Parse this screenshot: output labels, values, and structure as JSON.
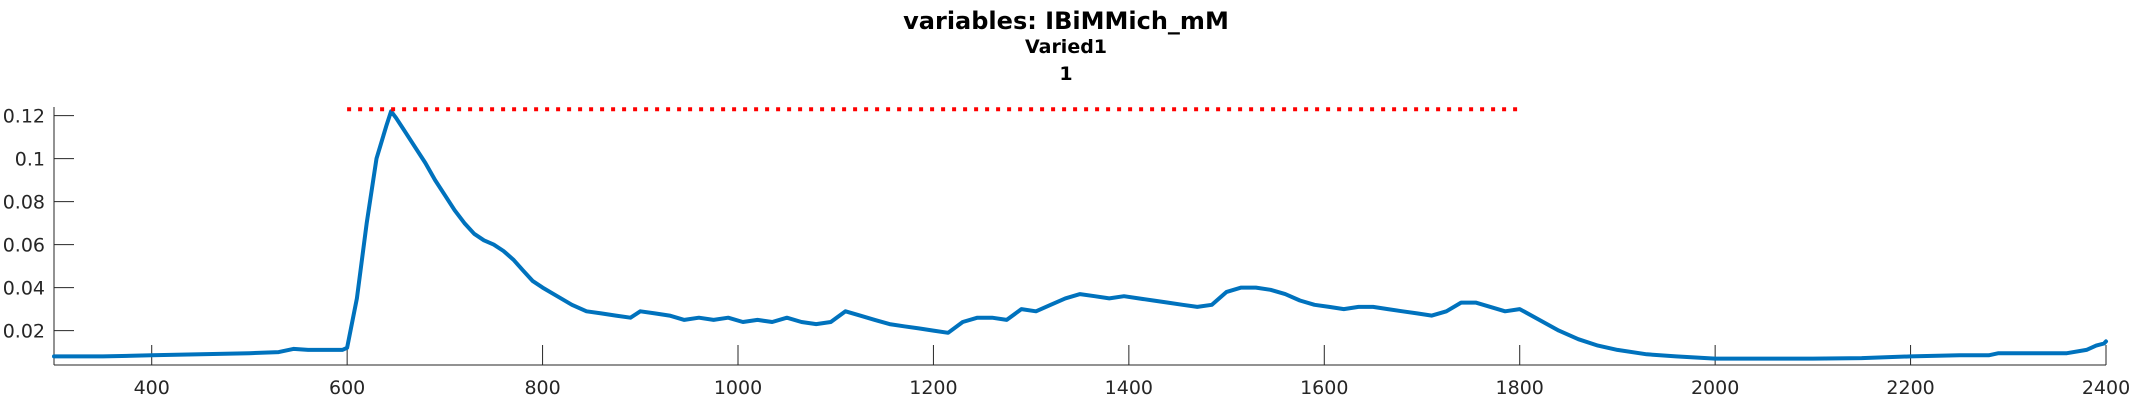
{
  "chart_data": {
    "type": "line",
    "title": "variables: IBiMMich_mM",
    "subtitle": "Varied1",
    "subtitle2": "1",
    "xlabel": "",
    "ylabel": "",
    "xlim": [
      300,
      2400
    ],
    "ylim": [
      0.004,
      0.124
    ],
    "grid": false,
    "legend": "none",
    "xticks": [
      400,
      600,
      800,
      1000,
      1200,
      1400,
      1600,
      1800,
      2000,
      2200,
      2400
    ],
    "xtick_labels": [
      "400",
      "600",
      "800",
      "1000",
      "1200",
      "1400",
      "1600",
      "1800",
      "2000",
      "2200",
      "2400"
    ],
    "yticks": [
      0.02,
      0.04,
      0.06,
      0.08,
      0.1,
      0.12
    ],
    "ytick_labels": [
      "0.02",
      "0.04",
      "0.06",
      "0.08",
      "0.1",
      "0.12"
    ],
    "series": [
      {
        "color": "#0072BD",
        "x": [
          300,
          350,
          400,
          450,
          500,
          530,
          545,
          560,
          580,
          595,
          600,
          610,
          620,
          630,
          640,
          645,
          650,
          660,
          670,
          680,
          690,
          700,
          710,
          720,
          730,
          740,
          750,
          760,
          770,
          780,
          790,
          800,
          815,
          830,
          845,
          860,
          875,
          890,
          900,
          915,
          930,
          945,
          960,
          975,
          990,
          1005,
          1020,
          1035,
          1050,
          1065,
          1080,
          1095,
          1110,
          1125,
          1140,
          1155,
          1170,
          1185,
          1200,
          1215,
          1230,
          1245,
          1260,
          1275,
          1290,
          1305,
          1320,
          1335,
          1350,
          1365,
          1380,
          1395,
          1410,
          1425,
          1440,
          1455,
          1470,
          1485,
          1500,
          1515,
          1530,
          1545,
          1560,
          1575,
          1590,
          1605,
          1620,
          1635,
          1650,
          1665,
          1680,
          1695,
          1710,
          1725,
          1740,
          1755,
          1770,
          1785,
          1800,
          1820,
          1840,
          1860,
          1880,
          1900,
          1930,
          1960,
          2000,
          2050,
          2100,
          2150,
          2200,
          2250,
          2280,
          2290,
          2300,
          2330,
          2360,
          2380,
          2390,
          2398,
          2400
        ],
        "y": [
          0.008,
          0.008,
          0.0085,
          0.009,
          0.0095,
          0.01,
          0.0115,
          0.011,
          0.011,
          0.011,
          0.012,
          0.035,
          0.07,
          0.1,
          0.115,
          0.122,
          0.119,
          0.112,
          0.105,
          0.098,
          0.09,
          0.083,
          0.076,
          0.07,
          0.065,
          0.062,
          0.06,
          0.057,
          0.053,
          0.048,
          0.043,
          0.04,
          0.036,
          0.032,
          0.029,
          0.028,
          0.027,
          0.026,
          0.029,
          0.028,
          0.027,
          0.025,
          0.026,
          0.025,
          0.026,
          0.024,
          0.025,
          0.024,
          0.026,
          0.024,
          0.023,
          0.024,
          0.029,
          0.027,
          0.025,
          0.023,
          0.022,
          0.021,
          0.02,
          0.019,
          0.024,
          0.026,
          0.026,
          0.025,
          0.03,
          0.029,
          0.032,
          0.035,
          0.037,
          0.036,
          0.035,
          0.036,
          0.035,
          0.034,
          0.033,
          0.032,
          0.031,
          0.032,
          0.038,
          0.04,
          0.04,
          0.039,
          0.037,
          0.034,
          0.032,
          0.031,
          0.03,
          0.031,
          0.031,
          0.03,
          0.029,
          0.028,
          0.027,
          0.029,
          0.033,
          0.033,
          0.031,
          0.029,
          0.03,
          0.025,
          0.02,
          0.016,
          0.013,
          0.011,
          0.009,
          0.008,
          0.007,
          0.007,
          0.007,
          0.0072,
          0.008,
          0.0085,
          0.0085,
          0.0095,
          0.0095,
          0.0095,
          0.0095,
          0.011,
          0.013,
          0.014,
          0.015
        ]
      },
      {
        "color": "#FF0000",
        "x": [
          600,
          1800
        ],
        "y": [
          0.123,
          0.123
        ]
      }
    ]
  }
}
